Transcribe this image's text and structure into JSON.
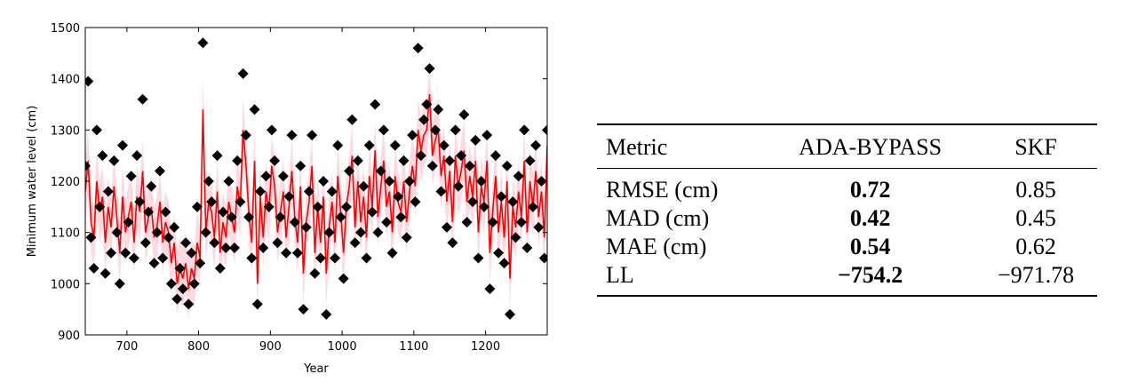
{
  "chart_data": {
    "type": "scatter",
    "xlabel": "Year",
    "ylabel": "Minimum water level (cm)",
    "xlim": [
      642,
      1286
    ],
    "ylim": [
      900,
      1500
    ],
    "xticks": [
      700,
      800,
      900,
      1000,
      1100,
      1200
    ],
    "yticks": [
      900,
      1000,
      1100,
      1200,
      1300,
      1400,
      1500
    ],
    "grid": false,
    "colors": {
      "observed": "#000000",
      "estimate": "#ff0000",
      "band": "#ffc0cb"
    },
    "x": [
      642,
      646,
      650,
      654,
      658,
      662,
      666,
      670,
      674,
      678,
      682,
      686,
      690,
      694,
      698,
      702,
      706,
      710,
      714,
      718,
      722,
      726,
      730,
      734,
      738,
      742,
      746,
      750,
      754,
      758,
      762,
      766,
      770,
      774,
      778,
      782,
      786,
      790,
      794,
      798,
      802,
      806,
      810,
      814,
      818,
      822,
      826,
      830,
      834,
      838,
      842,
      846,
      850,
      854,
      858,
      862,
      866,
      870,
      874,
      878,
      882,
      886,
      890,
      894,
      898,
      902,
      906,
      910,
      914,
      918,
      922,
      926,
      930,
      934,
      938,
      942,
      946,
      950,
      954,
      958,
      962,
      966,
      970,
      974,
      978,
      982,
      986,
      990,
      994,
      998,
      1002,
      1006,
      1010,
      1014,
      1018,
      1022,
      1026,
      1030,
      1034,
      1038,
      1042,
      1046,
      1050,
      1054,
      1058,
      1062,
      1066,
      1070,
      1074,
      1078,
      1082,
      1086,
      1090,
      1094,
      1098,
      1102,
      1106,
      1110,
      1114,
      1118,
      1122,
      1126,
      1130,
      1134,
      1138,
      1142,
      1146,
      1150,
      1154,
      1158,
      1162,
      1166,
      1170,
      1174,
      1178,
      1182,
      1186,
      1190,
      1194,
      1198,
      1202,
      1206,
      1210,
      1214,
      1218,
      1222,
      1226,
      1230,
      1234,
      1238,
      1242,
      1246,
      1250,
      1254,
      1258,
      1262,
      1266,
      1270,
      1274,
      1278,
      1282,
      1286
    ],
    "observed": [
      1230,
      1395,
      1090,
      1030,
      1300,
      1150,
      1250,
      1020,
      1180,
      1060,
      1240,
      1100,
      1000,
      1270,
      1060,
      1120,
      1210,
      1050,
      1250,
      1160,
      1360,
      1080,
      1140,
      1190,
      1040,
      1100,
      1220,
      1050,
      1140,
      1090,
      1000,
      1110,
      970,
      1030,
      990,
      1080,
      960,
      1060,
      1000,
      1150,
      1040,
      1470,
      1100,
      1200,
      1160,
      1080,
      1250,
      1030,
      1140,
      1070,
      1200,
      1130,
      1070,
      1240,
      1160,
      1410,
      1290,
      1130,
      1050,
      1340,
      960,
      1180,
      1070,
      1210,
      1150,
      1300,
      1240,
      1080,
      1130,
      1210,
      1060,
      1170,
      1290,
      1120,
      1060,
      1230,
      950,
      1110,
      1180,
      1290,
      1020,
      1150,
      1050,
      1200,
      940,
      1100,
      1180,
      1050,
      1270,
      1130,
      1010,
      1150,
      1220,
      1320,
      1080,
      1240,
      1100,
      1190,
      1050,
      1270,
      1140,
      1350,
      1100,
      1220,
      1300,
      1120,
      1200,
      1060,
      1270,
      1170,
      1130,
      1240,
      1090,
      1200,
      1290,
      1160,
      1460,
      1250,
      1320,
      1350,
      1420,
      1230,
      1300,
      1340,
      1180,
      1270,
      1110,
      1240,
      1080,
      1300,
      1190,
      1250,
      1330,
      1120,
      1230,
      1160,
      1280,
      1050,
      1200,
      1150,
      1290,
      990,
      1120,
      1250,
      1060,
      1170,
      1040,
      1230,
      940,
      1160,
      1090,
      1210,
      1120,
      1300,
      1070,
      1240,
      1150,
      1270,
      1110,
      1200,
      1050,
      1300
    ],
    "estimate": [
      1180,
      1240,
      1120,
      1090,
      1200,
      1140,
      1170,
      1080,
      1150,
      1110,
      1190,
      1130,
      1060,
      1170,
      1100,
      1130,
      1160,
      1080,
      1170,
      1140,
      1220,
      1100,
      1130,
      1150,
      1090,
      1110,
      1160,
      1080,
      1120,
      1100,
      1040,
      1080,
      1000,
      1030,
      1010,
      1040,
      990,
      1030,
      1010,
      1080,
      1050,
      1340,
      1100,
      1160,
      1140,
      1090,
      1180,
      1060,
      1120,
      1090,
      1160,
      1130,
      1100,
      1190,
      1150,
      1300,
      1230,
      1140,
      1080,
      1240,
      1000,
      1170,
      1090,
      1180,
      1140,
      1230,
      1190,
      1100,
      1140,
      1180,
      1090,
      1150,
      1220,
      1130,
      1080,
      1190,
      1020,
      1120,
      1160,
      1230,
      1060,
      1150,
      1080,
      1170,
      1020,
      1110,
      1160,
      1080,
      1210,
      1140,
      1060,
      1150,
      1190,
      1250,
      1110,
      1200,
      1120,
      1170,
      1090,
      1210,
      1150,
      1260,
      1130,
      1190,
      1240,
      1150,
      1180,
      1100,
      1210,
      1160,
      1140,
      1200,
      1120,
      1180,
      1230,
      1190,
      1300,
      1260,
      1290,
      1300,
      1370,
      1250,
      1280,
      1300,
      1210,
      1250,
      1160,
      1220,
      1120,
      1250,
      1190,
      1220,
      1260,
      1160,
      1210,
      1170,
      1240,
      1100,
      1190,
      1160,
      1240,
      1060,
      1140,
      1210,
      1100,
      1160,
      1090,
      1200,
      1010,
      1150,
      1110,
      1180,
      1130,
      1240,
      1100,
      1200,
      1150,
      1220,
      1130,
      1180,
      1090,
      1270
    ],
    "band_halfwidth": 60
  },
  "table": {
    "headers": [
      "Metric",
      "ADA-BYPASS",
      "SKF"
    ],
    "rows": [
      {
        "metric": "RMSE (cm)",
        "ada": "0.72",
        "skf": "0.85"
      },
      {
        "metric": "MAD (cm)",
        "ada": "0.42",
        "skf": "0.45"
      },
      {
        "metric": "MAE (cm)",
        "ada": "0.54",
        "skf": "0.62"
      },
      {
        "metric": "LL",
        "ada": "−754.2",
        "skf": "−971.78"
      }
    ]
  }
}
